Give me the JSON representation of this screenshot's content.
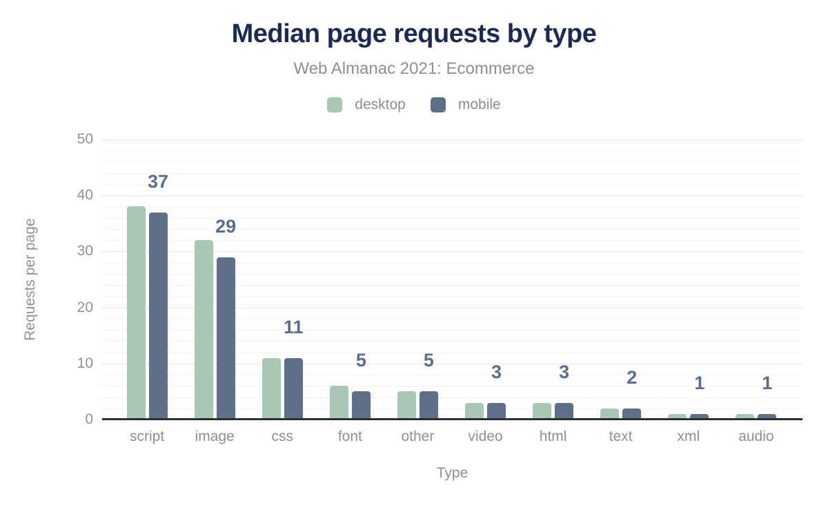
{
  "title": "Median page requests by type",
  "subtitle": "Web Almanac 2021: Ecommerce",
  "legend": {
    "items": [
      {
        "label": "desktop",
        "color": "#a8c8b5"
      },
      {
        "label": "mobile",
        "color": "#5e7089"
      }
    ]
  },
  "chart_data": {
    "type": "bar",
    "title": "Median page requests by type",
    "subtitle": "Web Almanac 2021: Ecommerce",
    "categories": [
      "script",
      "image",
      "css",
      "font",
      "other",
      "video",
      "html",
      "text",
      "xml",
      "audio"
    ],
    "series": [
      {
        "name": "desktop",
        "color": "#a8c8b5",
        "values": [
          38,
          32,
          11,
          6,
          5,
          3,
          3,
          2,
          1,
          1
        ]
      },
      {
        "name": "mobile",
        "color": "#5e7089",
        "values": [
          37,
          29,
          11,
          5,
          5,
          3,
          3,
          2,
          1,
          1
        ]
      }
    ],
    "value_labels": {
      "series": "mobile",
      "values": [
        "37",
        "29",
        "11",
        "5",
        "5",
        "3",
        "3",
        "2",
        "1",
        "1"
      ],
      "color": "#5a6e8e"
    },
    "xlabel": "Type",
    "ylabel": "Requests per page",
    "ylim": [
      0,
      50
    ],
    "y_ticks": [
      0,
      10,
      20,
      30,
      40,
      50
    ],
    "minor_grid_step": 2,
    "grid": true,
    "legend_position": "top"
  }
}
